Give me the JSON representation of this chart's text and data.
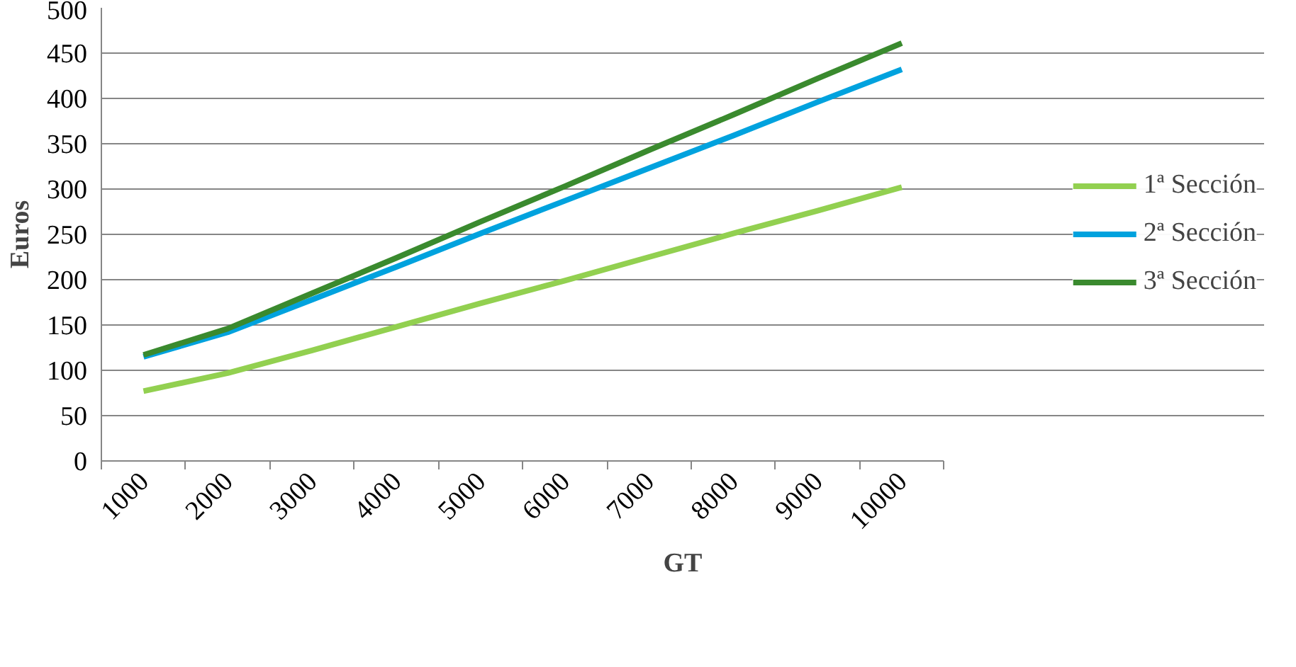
{
  "chart_data": {
    "type": "line",
    "xlabel": "GT",
    "ylabel": "Euros",
    "categories": [
      "1000",
      "2000",
      "3000",
      "4000",
      "5000",
      "6000",
      "7000",
      "8000",
      "9000",
      "10000"
    ],
    "series": [
      {
        "name": "1ª Sección",
        "color": "#92d050",
        "values": [
          77,
          97,
          122,
          148,
          174,
          199,
          225,
          251,
          276,
          302
        ]
      },
      {
        "name": "2ª Sección",
        "color": "#00a2de",
        "values": [
          115,
          142,
          178,
          214,
          251,
          287,
          323,
          359,
          396,
          432
        ]
      },
      {
        "name": "3ª Sección",
        "color": "#3a8a2e",
        "values": [
          117,
          146,
          185,
          224,
          264,
          303,
          343,
          382,
          422,
          461
        ]
      }
    ],
    "ylim": [
      0,
      500
    ],
    "yticks": [
      0,
      50,
      100,
      150,
      200,
      250,
      300,
      350,
      400,
      450,
      500
    ],
    "grid": "y",
    "legend": "right",
    "marker": "none",
    "line_style": "solid"
  }
}
